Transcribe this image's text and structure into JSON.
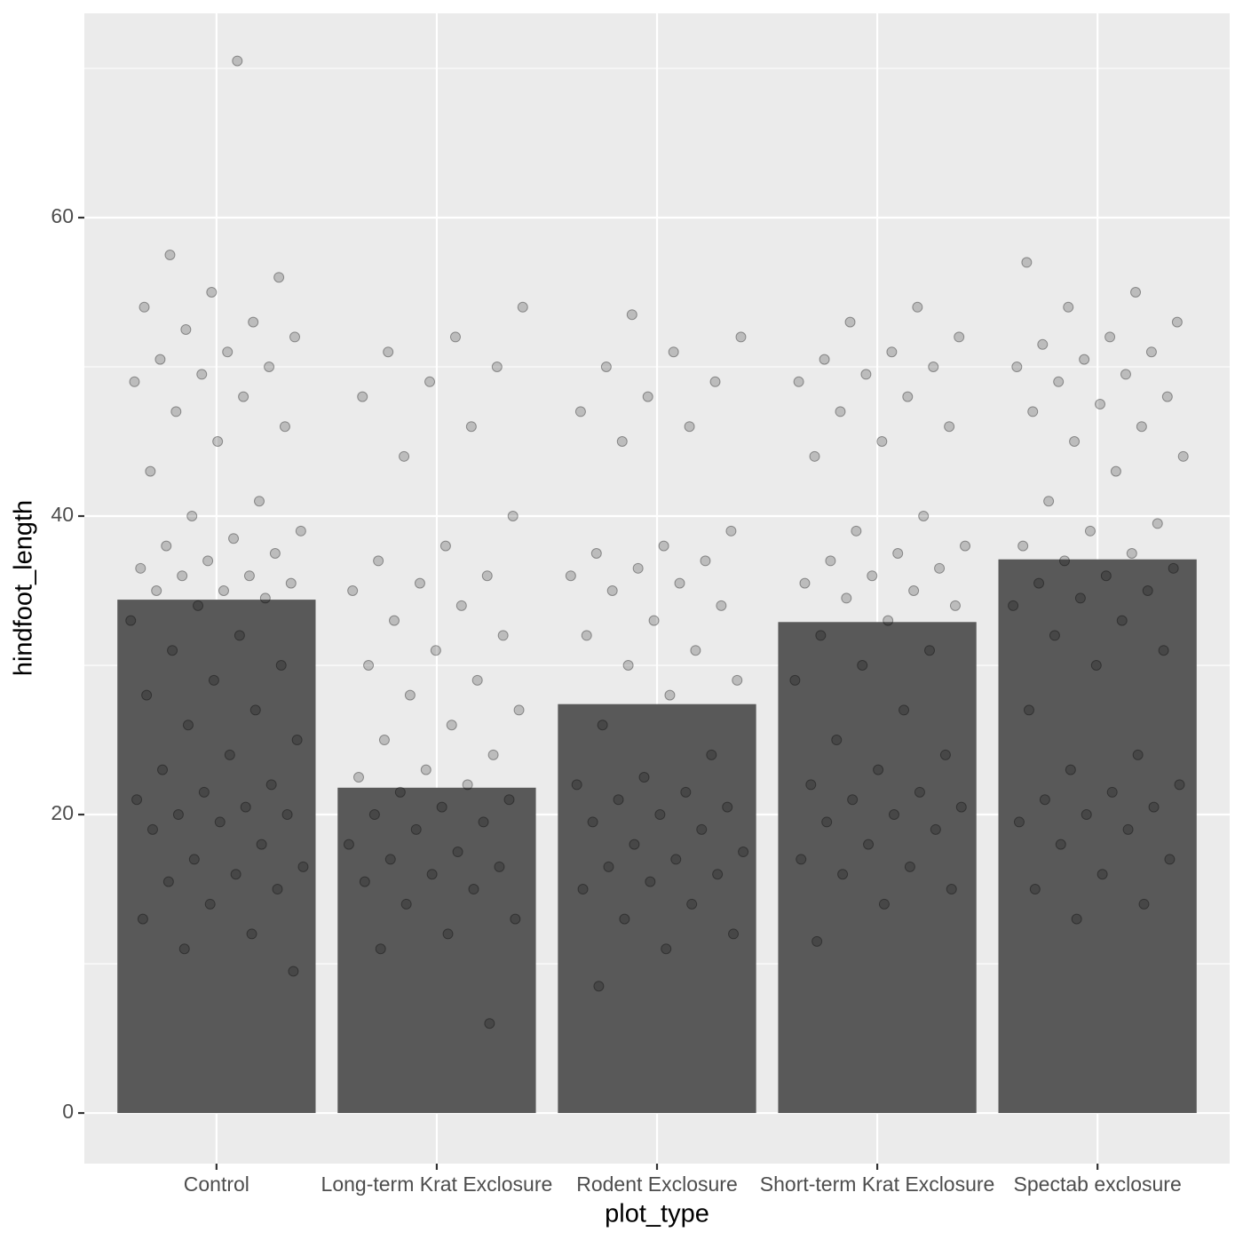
{
  "chart_data": {
    "type": "bar",
    "x_label": "plot_type",
    "y_label": "hindfoot_length",
    "categories": [
      "Control",
      "Long-term Krat Exclosure",
      "Rodent Exclosure",
      "Short-term Krat Exclosure",
      "Spectab exclosure"
    ],
    "values": [
      34.4,
      21.8,
      27.4,
      32.9,
      37.1
    ],
    "color": "#595959",
    "ylim": [
      -3.39,
      73.69
    ],
    "yticks": [
      0,
      20,
      40,
      60
    ],
    "grid": true,
    "points": [
      [
        70.5,
        57.5,
        56,
        55,
        54,
        53,
        52.5,
        52,
        51,
        50.5,
        50,
        49.5,
        49,
        48,
        47,
        46,
        45,
        43,
        41,
        40,
        39,
        38.5,
        38,
        37.5,
        37,
        36.5,
        36,
        36,
        35.5,
        35,
        35,
        34.5,
        34,
        33,
        32,
        31,
        30,
        29,
        28,
        27,
        26,
        25,
        24,
        23,
        22,
        21.5,
        21,
        20.5,
        20,
        20,
        19.5,
        19,
        18,
        17,
        16.5,
        16,
        15.5,
        15,
        14,
        13,
        12,
        11,
        9.5
      ],
      [
        54,
        52,
        51,
        50,
        49,
        48,
        46,
        44,
        40,
        38,
        37,
        36,
        35.5,
        35,
        34,
        33,
        32,
        31,
        30,
        29,
        28,
        27,
        26,
        25,
        24,
        23,
        22.5,
        22,
        21.5,
        21,
        20.5,
        20,
        19.5,
        19,
        18,
        17.5,
        17,
        16.5,
        16,
        15.5,
        15,
        14,
        13,
        12,
        11,
        6
      ],
      [
        53.5,
        52,
        51,
        50,
        49,
        48,
        47,
        46,
        45,
        39,
        38,
        37.5,
        37,
        36.5,
        36,
        35.5,
        35,
        34,
        33,
        32,
        31,
        30,
        29,
        28,
        26,
        24,
        22.5,
        22,
        21.5,
        21,
        20.5,
        20,
        19.5,
        19,
        18,
        17.5,
        17,
        16.5,
        16,
        15.5,
        15,
        14,
        13,
        12,
        11,
        8.5
      ],
      [
        54,
        53,
        52,
        51,
        50.5,
        50,
        49.5,
        49,
        48,
        47,
        46,
        45,
        44,
        40,
        39,
        38,
        37.5,
        37,
        36.5,
        36,
        35.5,
        35,
        34.5,
        34,
        33,
        32,
        31,
        30,
        29,
        27,
        25,
        24,
        23,
        22,
        21.5,
        21,
        20.5,
        20,
        19.5,
        19,
        18,
        17,
        16.5,
        16,
        15,
        14,
        11.5
      ],
      [
        57,
        55,
        54,
        53,
        52,
        51.5,
        51,
        50.5,
        50,
        49.5,
        49,
        48,
        47.5,
        47,
        46,
        45,
        44,
        43,
        41,
        39.5,
        39,
        38,
        37.5,
        37,
        36.5,
        36,
        35.5,
        35,
        34.5,
        34,
        33,
        32,
        31,
        30,
        27,
        24,
        23,
        22,
        21.5,
        21,
        20.5,
        20,
        19.5,
        19,
        18,
        17,
        16,
        15,
        14,
        13
      ]
    ]
  }
}
